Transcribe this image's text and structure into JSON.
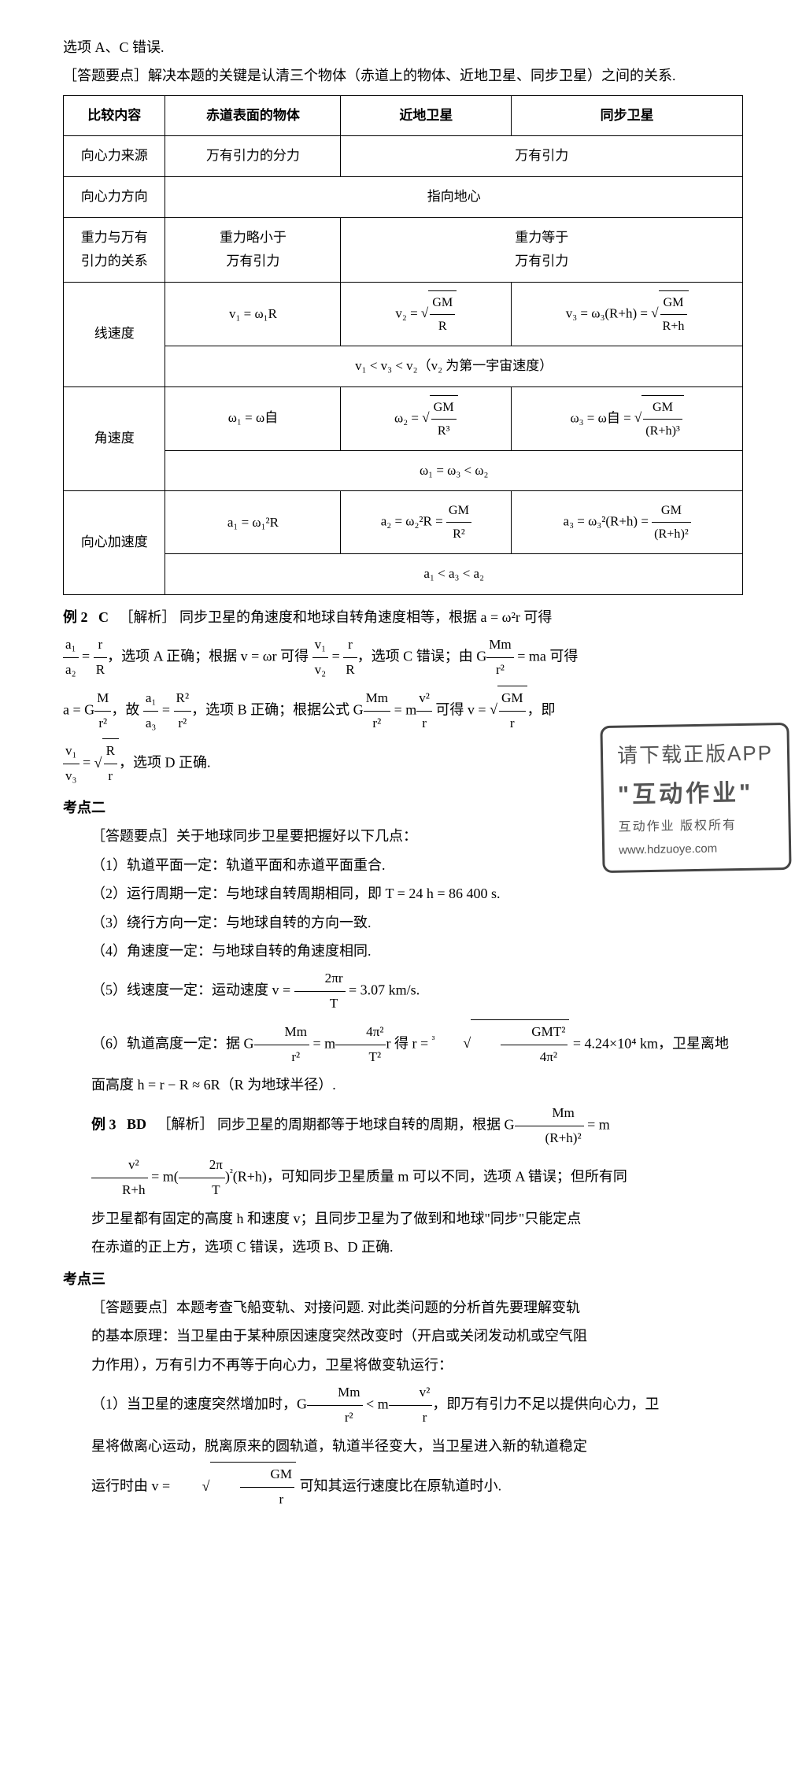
{
  "intro": {
    "line1": "选项 A、C 错误.",
    "line2_label": "［答题要点］",
    "line2_text": "解决本题的关键是认清三个物体（赤道上的物体、近地卫星、同步卫星）之间的关系."
  },
  "table": {
    "headers": [
      "比较内容",
      "赤道表面的物体",
      "近地卫星",
      "同步卫星"
    ],
    "row_source_label": "向心力来源",
    "row_source_c1": "万有引力的分力",
    "row_source_c2": "万有引力",
    "row_dir_label": "向心力方向",
    "row_dir_val": "指向地心",
    "row_gravity_label1": "重力与万有",
    "row_gravity_label2": "引力的关系",
    "row_gravity_c1a": "重力略小于",
    "row_gravity_c1b": "万有引力",
    "row_gravity_c2a": "重力等于",
    "row_gravity_c2b": "万有引力",
    "row_v_label": "线速度",
    "row_v_c1": "v₁ = ω₁R",
    "row_v_c2_pre": "v₂ = ",
    "row_v_c2_num": "GM",
    "row_v_c2_den": "R",
    "row_v_c3_pre": "v₃ = ω₃(R+h) = ",
    "row_v_c3_num": "GM",
    "row_v_c3_den": "R+h",
    "row_v_note": "v₁ < v₃ < v₂（v₂ 为第一宇宙速度）",
    "row_w_label": "角速度",
    "row_w_c1": "ω₁ = ω自",
    "row_w_c2_pre": "ω₂ = ",
    "row_w_c2_num": "GM",
    "row_w_c2_den": "R³",
    "row_w_c3_pre": "ω₃ = ω自 = ",
    "row_w_c3_num": "GM",
    "row_w_c3_den": "(R+h)³",
    "row_w_note": "ω₁ = ω₃ < ω₂",
    "row_a_label": "向心加速度",
    "row_a_c1": "a₁ = ω₁²R",
    "row_a_c2_pre": "a₂ = ω₂²R = ",
    "row_a_c2_num": "GM",
    "row_a_c2_den": "R²",
    "row_a_c3_pre": "a₃ = ω₃²(R+h) = ",
    "row_a_c3_num": "GM",
    "row_a_c3_den": "(R+h)²",
    "row_a_note": "a₁ < a₃ < a₂"
  },
  "ex2": {
    "label": "例 2",
    "answer": "C",
    "analysis_label": "［解析］",
    "part0": "同步卫星的角速度和地球自转角速度相等，根据 a = ω²r 可得",
    "frac1_num": "a₁",
    "frac1_den": "a₂",
    "eq1": " = ",
    "frac2_num": "r",
    "frac2_den": "R",
    "part1": "，选项 A 正确；根据 v = ωr 可得 ",
    "frac3_num": "v₁",
    "frac3_den": "v₂",
    "eq2": " = ",
    "frac4_num": "r",
    "frac4_den": "R",
    "part2": "，选项 C 错误；由 G",
    "frac5_num": "Mm",
    "frac5_den": "r²",
    "part3": " = ma 可得",
    "part4_pre": "a = G",
    "frac6_num": "M",
    "frac6_den": "r²",
    "part4_mid": "，故 ",
    "frac7_num": "a₁",
    "frac7_den": "a₃",
    "eq3": " = ",
    "frac8_num": "R²",
    "frac8_den": "r²",
    "part5": "，选项 B 正确；根据公式 G",
    "frac9_num": "Mm",
    "frac9_den": "r²",
    "part6": " = m",
    "frac10_num": "v²",
    "frac10_den": "r",
    "part7": " 可得 v = ",
    "sqrt1_num": "GM",
    "sqrt1_den": "r",
    "part8": "，即",
    "frac11_num": "v₁",
    "frac11_den": "v₃",
    "eq4": " = ",
    "sqrt2_num": "R",
    "sqrt2_den": "r",
    "part9": "，选项 D 正确."
  },
  "kp2": {
    "title": "考点二",
    "head": "［答题要点］关于地球同步卫星要把握好以下几点：",
    "p1": "（1）轨道平面一定：轨道平面和赤道平面重合.",
    "p2": "（2）运行周期一定：与地球自转周期相同，即 T = 24 h = 86 400 s.",
    "p3": "（3）绕行方向一定：与地球自转的方向一致.",
    "p4": "（4）角速度一定：与地球自转的角速度相同.",
    "p5_pre": "（5）线速度一定：运动速度 v = ",
    "p5_num": "2πr",
    "p5_den": "T",
    "p5_post": " = 3.07 km/s.",
    "p6_pre": "（6）轨道高度一定：据 G",
    "p6_f1n": "Mm",
    "p6_f1d": "r²",
    "p6_mid1": " = m",
    "p6_f2n": "4π²",
    "p6_f2d": "T²",
    "p6_mid2": "r 得 r = ",
    "p6_cube": "³",
    "p6_f3n": "GMT²",
    "p6_f3d": "4π²",
    "p6_post": " = 4.24×10⁴ km，卫星离地",
    "p6b": "面高度 h = r − R ≈ 6R（R 为地球半径）."
  },
  "ex3": {
    "label": "例 3",
    "answer": "BD",
    "analysis_label": "［解析］",
    "part0": "同步卫星的周期都等于地球自转的周期，根据 G",
    "f1n": "Mm",
    "f1d": "(R+h)²",
    "part1": " = m",
    "f2n": "v²",
    "f2d": "R+h",
    "part2": " = m",
    "paren_pre": "(",
    "f3n": "2π",
    "f3d": "T",
    "paren_post": ")",
    "sq": "²",
    "part3": "(R+h)，可知同步卫星质量 m 可以不同，选项 A 错误；但所有同",
    "part4": "步卫星都有固定的高度 h 和速度 v；且同步卫星为了做到和地球\"同步\"只能定点",
    "part5": "在赤道的正上方，选项 C 错误，选项 B、D 正确."
  },
  "kp3": {
    "title": "考点三",
    "head": "［答题要点］本题考查飞船变轨、对接问题. 对此类问题的分析首先要理解变轨",
    "p1": "的基本原理：当卫星由于某种原因速度突然改变时（开启或关闭发动机或空气阻",
    "p2": "力作用），万有引力不再等于向心力，卫星将做变轨运行：",
    "p3_pre": "（1）当卫星的速度突然增加时，G",
    "p3_f1n": "Mm",
    "p3_f1d": "r²",
    "p3_mid": " < m",
    "p3_f2n": "v²",
    "p3_f2d": "r",
    "p3_post": "，即万有引力不足以提供向心力，卫",
    "p4": "星将做离心运动，脱离原来的圆轨道，轨道半径变大，当卫星进入新的轨道稳定",
    "p5_pre": "运行时由 v = ",
    "p5_sn": "GM",
    "p5_sd": "r",
    "p5_post": " 可知其运行速度比在原轨道时小."
  },
  "watermark": {
    "l1": "请下载正版APP",
    "l2": "\"互动作业\"",
    "l3": "互动作业 版权所有",
    "l4": "www.hdzuoye.com"
  }
}
